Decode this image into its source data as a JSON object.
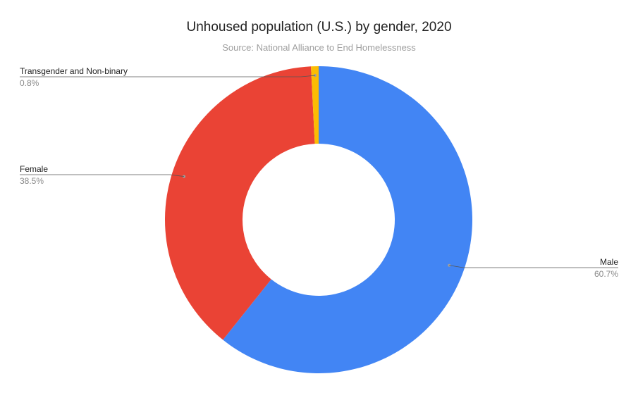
{
  "chart_data": {
    "type": "pie",
    "donut": true,
    "title": "Unhoused population (U.S.) by gender, 2020",
    "subtitle": "Source: National Alliance to End Homelessness",
    "slices": [
      {
        "label": "Male",
        "value": 60.7,
        "display": "60.7%",
        "color": "#4285f4"
      },
      {
        "label": "Female",
        "value": 38.5,
        "display": "38.5%",
        "color": "#ea4335"
      },
      {
        "label": "Transgender and Non-binary",
        "value": 0.8,
        "display": "0.8%",
        "color": "#fbbc04"
      }
    ]
  }
}
